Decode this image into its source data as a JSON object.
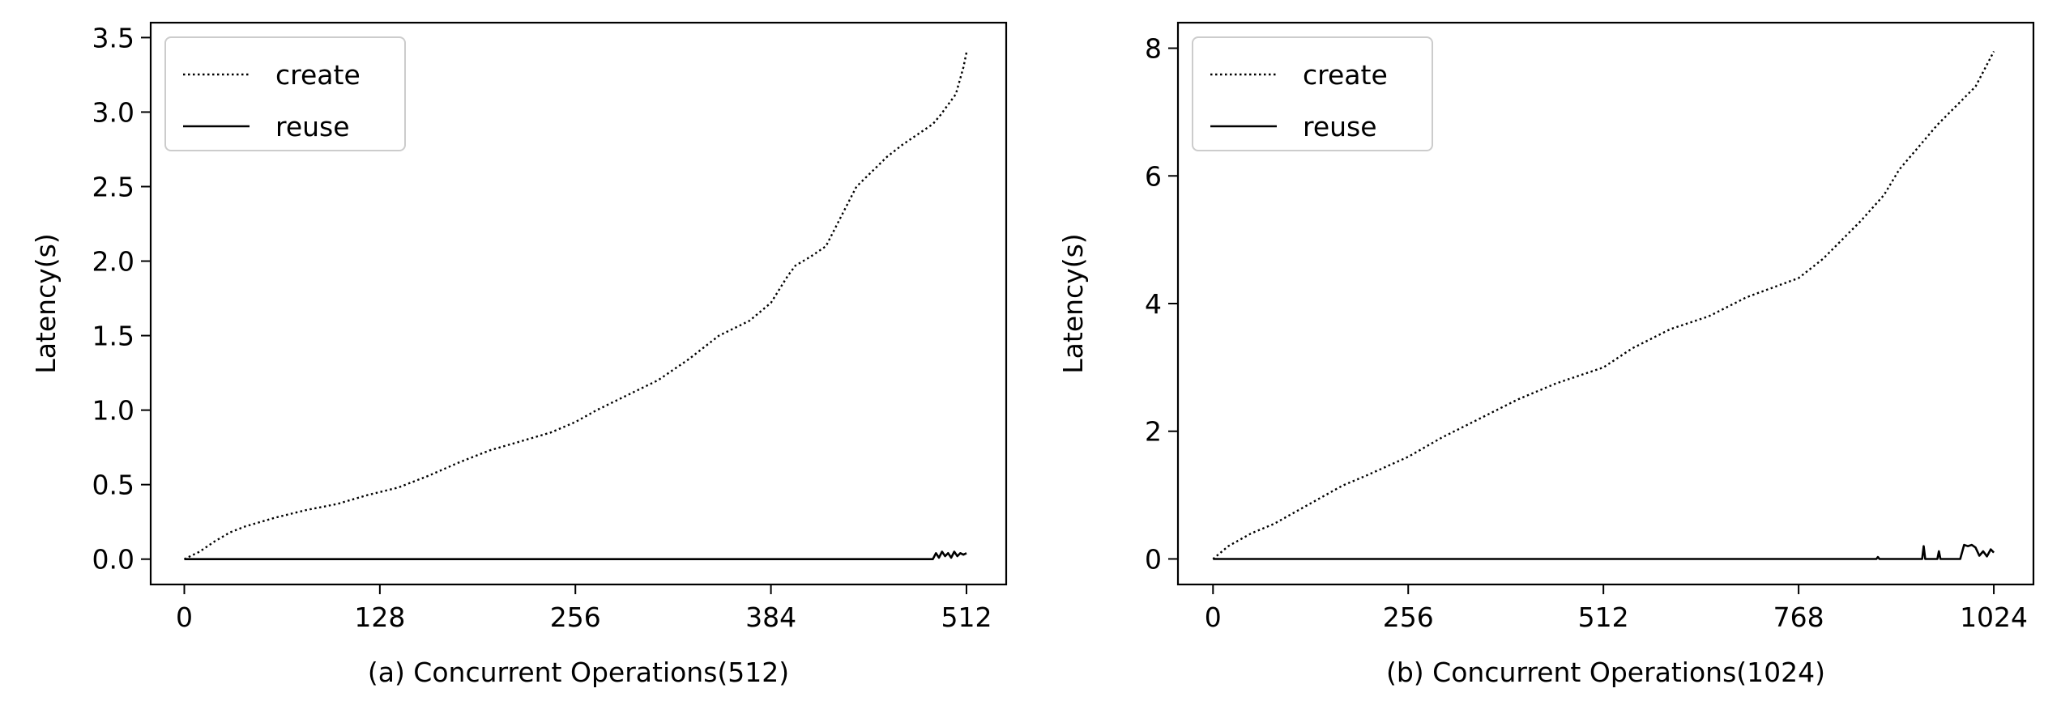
{
  "chart_data": [
    {
      "type": "line",
      "xlabel": "(a) Concurrent Operations(512)",
      "ylabel": "Latency(s)",
      "xlim": [
        -22,
        538
      ],
      "ylim": [
        -0.17,
        3.6
      ],
      "xticks": [
        0,
        128,
        256,
        384,
        512
      ],
      "xtick_labels": [
        "0",
        "128",
        "256",
        "384",
        "512"
      ],
      "yticks": [
        0.0,
        0.5,
        1.0,
        1.5,
        2.0,
        2.5,
        3.0,
        3.5
      ],
      "ytick_labels": [
        "0.0",
        "0.5",
        "1.0",
        "1.5",
        "2.0",
        "2.5",
        "3.0",
        "3.5"
      ],
      "legend_position": "top-left",
      "grid": false,
      "series": [
        {
          "name": "create",
          "style": "dotted",
          "color": "#000000",
          "x": [
            0,
            10,
            20,
            30,
            40,
            50,
            60,
            80,
            100,
            120,
            140,
            160,
            180,
            200,
            220,
            240,
            256,
            270,
            290,
            310,
            330,
            350,
            370,
            384,
            395,
            400,
            410,
            420,
            430,
            440,
            450,
            460,
            470,
            480,
            490,
            495,
            500,
            505,
            510,
            512
          ],
          "y": [
            0.0,
            0.05,
            0.12,
            0.18,
            0.22,
            0.25,
            0.28,
            0.33,
            0.37,
            0.43,
            0.48,
            0.56,
            0.65,
            0.73,
            0.79,
            0.85,
            0.92,
            1.0,
            1.1,
            1.2,
            1.34,
            1.5,
            1.6,
            1.72,
            1.9,
            1.97,
            2.03,
            2.1,
            2.3,
            2.5,
            2.6,
            2.7,
            2.78,
            2.85,
            2.92,
            2.98,
            3.05,
            3.12,
            3.3,
            3.4
          ]
        },
        {
          "name": "reuse",
          "style": "solid",
          "color": "#000000",
          "x": [
            0,
            490,
            492,
            494,
            496,
            498,
            500,
            502,
            504,
            506,
            508,
            510,
            512
          ],
          "y": [
            0.0,
            0.0,
            0.04,
            0.01,
            0.05,
            0.02,
            0.04,
            0.01,
            0.05,
            0.02,
            0.04,
            0.03,
            0.04
          ]
        }
      ]
    },
    {
      "type": "line",
      "xlabel": "(b) Concurrent Operations(1024)",
      "ylabel": "Latency(s)",
      "xlim": [
        -46,
        1076
      ],
      "ylim": [
        -0.4,
        8.4
      ],
      "xticks": [
        0,
        256,
        512,
        768,
        1024
      ],
      "xtick_labels": [
        "0",
        "256",
        "512",
        "768",
        "1024"
      ],
      "yticks": [
        0,
        2,
        4,
        6,
        8
      ],
      "ytick_labels": [
        "0",
        "2",
        "4",
        "6",
        "8"
      ],
      "legend_position": "top-left",
      "grid": false,
      "series": [
        {
          "name": "create",
          "style": "dotted",
          "color": "#000000",
          "x": [
            0,
            20,
            50,
            80,
            110,
            140,
            170,
            200,
            256,
            300,
            350,
            400,
            450,
            512,
            550,
            600,
            650,
            700,
            768,
            800,
            850,
            880,
            900,
            950,
            1000,
            1024
          ],
          "y": [
            0.0,
            0.2,
            0.4,
            0.55,
            0.75,
            0.95,
            1.15,
            1.3,
            1.6,
            1.9,
            2.2,
            2.5,
            2.75,
            3.0,
            3.3,
            3.6,
            3.8,
            4.1,
            4.4,
            4.7,
            5.3,
            5.7,
            6.1,
            6.8,
            7.4,
            7.95
          ]
        },
        {
          "name": "reuse",
          "style": "solid",
          "color": "#000000",
          "x": [
            0,
            870,
            872,
            874,
            930,
            932,
            934,
            950,
            952,
            954,
            980,
            985,
            990,
            995,
            1000,
            1005,
            1010,
            1015,
            1020,
            1024
          ],
          "y": [
            0.0,
            0.0,
            0.03,
            0.0,
            0.0,
            0.2,
            0.0,
            0.0,
            0.12,
            0.0,
            0.0,
            0.22,
            0.2,
            0.22,
            0.18,
            0.05,
            0.12,
            0.04,
            0.15,
            0.1
          ]
        }
      ]
    }
  ]
}
